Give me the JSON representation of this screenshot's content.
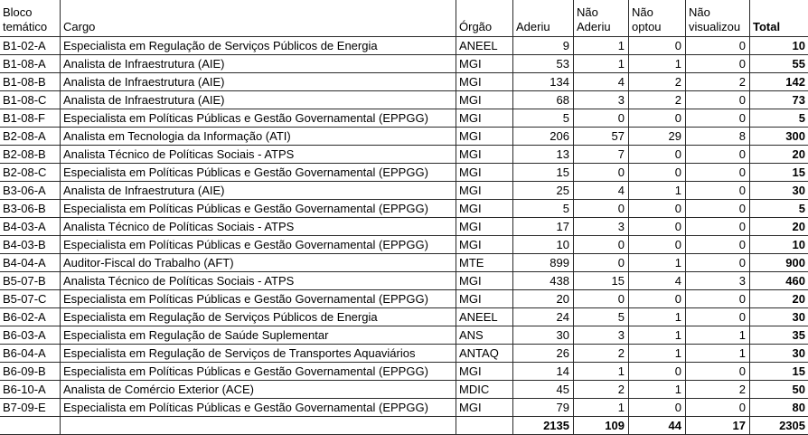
{
  "colors": {
    "background": "#ffffff",
    "text": "#000000",
    "grid_border": "#2a2a2a"
  },
  "table": {
    "columns": [
      {
        "key": "bloco",
        "label": "Bloco temático"
      },
      {
        "key": "cargo",
        "label": "Cargo"
      },
      {
        "key": "orgao",
        "label": "Órgão"
      },
      {
        "key": "aderiu",
        "label": "Aderiu"
      },
      {
        "key": "nao_aderiu",
        "label": "Não Aderiu"
      },
      {
        "key": "nao_optou",
        "label": "Não optou"
      },
      {
        "key": "nao_visualizou",
        "label": "Não visualizou"
      },
      {
        "key": "total",
        "label": "Total"
      }
    ],
    "rows": [
      [
        "B1-02-A",
        "Especialista em Regulação de Serviços Públicos de Energia",
        "ANEEL",
        9,
        1,
        0,
        0,
        10
      ],
      [
        "B1-08-A",
        "Analista de Infraestrutura (AIE)",
        "MGI",
        53,
        1,
        1,
        0,
        55
      ],
      [
        "B1-08-B",
        "Analista de Infraestrutura (AIE)",
        "MGI",
        134,
        4,
        2,
        2,
        142
      ],
      [
        "B1-08-C",
        "Analista de Infraestrutura (AIE)",
        "MGI",
        68,
        3,
        2,
        0,
        73
      ],
      [
        "B1-08-F",
        "Especialista em Políticas Públicas e Gestão Governamental (EPPGG)",
        "MGI",
        5,
        0,
        0,
        0,
        5
      ],
      [
        "B2-08-A",
        "Analista em Tecnologia da Informação (ATI)",
        "MGI",
        206,
        57,
        29,
        8,
        300
      ],
      [
        "B2-08-B",
        "Analista Técnico de Políticas Sociais - ATPS",
        "MGI",
        13,
        7,
        0,
        0,
        20
      ],
      [
        "B2-08-C",
        "Especialista em Políticas Públicas e Gestão Governamental (EPPGG)",
        "MGI",
        15,
        0,
        0,
        0,
        15
      ],
      [
        "B3-06-A",
        "Analista de Infraestrutura (AIE)",
        "MGI",
        25,
        4,
        1,
        0,
        30
      ],
      [
        "B3-06-B",
        "Especialista em Políticas Públicas e Gestão Governamental (EPPGG)",
        "MGI",
        5,
        0,
        0,
        0,
        5
      ],
      [
        "B4-03-A",
        "Analista Técnico de Políticas Sociais - ATPS",
        "MGI",
        17,
        3,
        0,
        0,
        20
      ],
      [
        "B4-03-B",
        "Especialista em Políticas Públicas e Gestão Governamental (EPPGG)",
        "MGI",
        10,
        0,
        0,
        0,
        10
      ],
      [
        "B4-04-A",
        "Auditor-Fiscal do Trabalho (AFT)",
        "MTE",
        899,
        0,
        1,
        0,
        900
      ],
      [
        "B5-07-B",
        "Analista Técnico de Políticas Sociais - ATPS",
        "MGI",
        438,
        15,
        4,
        3,
        460
      ],
      [
        "B5-07-C",
        "Especialista em Políticas Públicas e Gestão Governamental (EPPGG)",
        "MGI",
        20,
        0,
        0,
        0,
        20
      ],
      [
        "B6-02-A",
        "Especialista em Regulação de Serviços Públicos de Energia",
        "ANEEL",
        24,
        5,
        1,
        0,
        30
      ],
      [
        "B6-03-A",
        "Especialista em Regulação de Saúde Suplementar",
        "ANS",
        30,
        3,
        1,
        1,
        35
      ],
      [
        "B6-04-A",
        "Especialista em Regulação de Serviços de Transportes Aquaviários",
        "ANTAQ",
        26,
        2,
        1,
        1,
        30
      ],
      [
        "B6-09-B",
        "Especialista em Políticas Públicas e Gestão Governamental (EPPGG)",
        "MGI",
        14,
        1,
        0,
        0,
        15
      ],
      [
        "B6-10-A",
        "Analista de Comércio Exterior (ACE)",
        "MDIC",
        45,
        2,
        1,
        2,
        50
      ],
      [
        "B7-09-E",
        "Especialista em Políticas Públicas e Gestão Governamental (EPPGG)",
        "MGI",
        79,
        1,
        0,
        0,
        80
      ]
    ],
    "totals_row": [
      "",
      "",
      "",
      2135,
      109,
      44,
      17,
      2305
    ]
  }
}
